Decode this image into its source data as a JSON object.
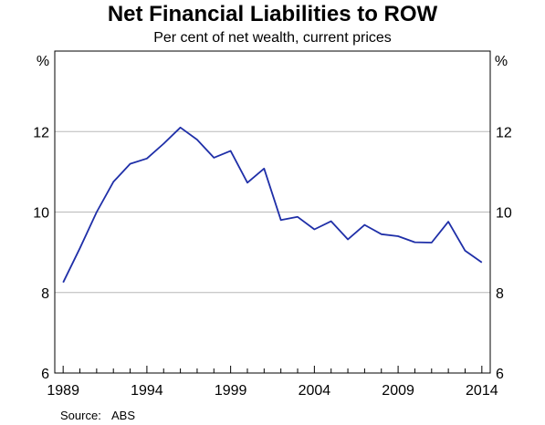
{
  "chart_data": {
    "type": "line",
    "title": "Net Financial Liabilities to ROW",
    "subtitle": "Per cent of net wealth, current prices",
    "unit_left": "%",
    "unit_right": "%",
    "ylim": [
      6,
      14
    ],
    "yticks": [
      "6",
      "8",
      "10",
      "12"
    ],
    "xlim": [
      1988.5,
      2014.5
    ],
    "xticks": [
      {
        "year": 1989,
        "label": "1989"
      },
      {
        "year": 1994,
        "label": "1994"
      },
      {
        "year": 1999,
        "label": "1999"
      },
      {
        "year": 2004,
        "label": "2004"
      },
      {
        "year": 2009,
        "label": "2009"
      },
      {
        "year": 2014,
        "label": "2014"
      }
    ],
    "grid": true,
    "series": [
      {
        "color": "#1f2fa8",
        "x": [
          1989,
          1990,
          1991,
          1992,
          1993,
          1994,
          1995,
          1996,
          1997,
          1998,
          1999,
          2000,
          2001,
          2002,
          2003,
          2004,
          2005,
          2006,
          2007,
          2008,
          2009,
          2010,
          2011,
          2012,
          2013,
          2014
        ],
        "y": [
          8.25,
          9.1,
          10.0,
          10.75,
          11.2,
          11.33,
          11.7,
          12.1,
          11.8,
          11.35,
          11.52,
          10.73,
          11.08,
          9.8,
          9.88,
          9.57,
          9.77,
          9.32,
          9.68,
          9.45,
          9.4,
          9.25,
          9.24,
          9.76,
          9.04,
          8.75
        ]
      }
    ]
  },
  "source": {
    "label": "Source:",
    "value": "ABS"
  }
}
